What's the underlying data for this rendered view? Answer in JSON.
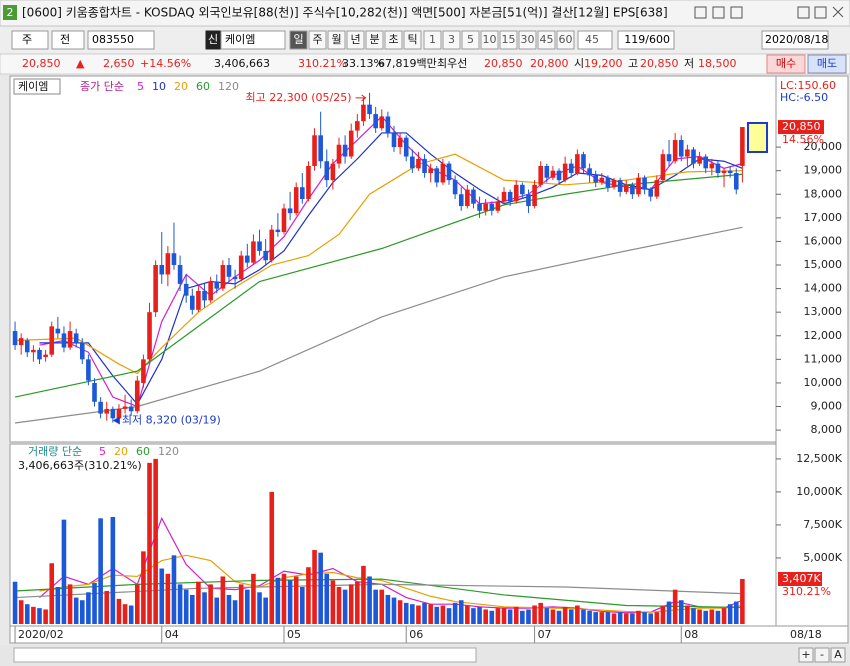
{
  "window": {
    "badge": "2",
    "title": "[0600] 키움종합차트 - KOSDAQ 외국인보유[88(천)] 주식수[10,282(천)] 액면[500] 자본금[51(억)] 결산[12월] EPS[638]"
  },
  "toolbar": {
    "market": "주",
    "mode": "전",
    "code": "083550",
    "flag": "신",
    "name": "케이엠",
    "periods": [
      "일",
      "주",
      "월",
      "년",
      "분",
      "초",
      "틱"
    ],
    "intervals": [
      "1",
      "3",
      "5",
      "10",
      "15",
      "30",
      "45",
      "60"
    ],
    "custom": "45",
    "count": "119/600",
    "date": "2020/08/18"
  },
  "quote": {
    "price": "20,850",
    "arrow": "▲",
    "change": "2,650",
    "rate": "+14.56%",
    "volume": "3,406,663",
    "volume_rate": "310.21%",
    "turnover": "33.13%",
    "amount": "67,819백만",
    "best_label": "최우선",
    "best_ask": "20,850",
    "best_bid": "20,800",
    "open_label": "시",
    "open": "19,200",
    "high_label": "고",
    "high": "20,850",
    "low_label": "저",
    "low": "18,500",
    "buy": "매수",
    "sell": "매도"
  },
  "chart_data": [
    {
      "type": "candlestick",
      "name": "케이엠",
      "legend_title": "종가 단순",
      "up_color": "#e8201c",
      "down_color": "#1c58d8",
      "xlim": [
        -0.5,
        124.5
      ],
      "ylim": [
        7580,
        22930
      ],
      "xticks": [
        {
          "value": 0,
          "label": "2020/02"
        },
        {
          "value": 24,
          "label": "04"
        },
        {
          "value": 44,
          "label": "05"
        },
        {
          "value": 64,
          "label": "06"
        },
        {
          "value": 85,
          "label": "07"
        },
        {
          "value": 109,
          "label": "08"
        }
      ],
      "last_date": "08/18",
      "yticks": [
        {
          "value": 8000,
          "label": "8,000"
        },
        {
          "value": 9000,
          "label": "9,000"
        },
        {
          "value": 10000,
          "label": "10,000"
        },
        {
          "value": 11000,
          "label": "11,000"
        },
        {
          "value": 12000,
          "label": "12,000"
        },
        {
          "value": 13000,
          "label": "13,000"
        },
        {
          "value": 14000,
          "label": "14,000"
        },
        {
          "value": 15000,
          "label": "15,000"
        },
        {
          "value": 16000,
          "label": "16,000"
        },
        {
          "value": 17000,
          "label": "17,000"
        },
        {
          "value": 18000,
          "label": "18,000"
        },
        {
          "value": 19000,
          "label": "19,000"
        },
        {
          "value": 20000,
          "label": "20,000"
        }
      ],
      "lc": "LC:150.60",
      "hc": "HC:-6.50",
      "last_label": {
        "value": 20850,
        "label": "20,850"
      },
      "change_label": "14.56%",
      "annotations": [
        {
          "text": "최고 22,300 (05/25)",
          "index": 58,
          "value": 22300,
          "color": "#e8201c"
        },
        {
          "text": "최저 8,320 (03/19)",
          "index": 16,
          "value": 8320,
          "color": "#1c3cc8"
        }
      ],
      "open": [
        12200,
        11600,
        11800,
        11300,
        11400,
        11100,
        11200,
        12300,
        12100,
        11500,
        12100,
        11700,
        11000,
        10000,
        9200,
        8700,
        8900,
        8500,
        8900,
        9000,
        8800,
        10000,
        11000,
        13000,
        15000,
        14600,
        15500,
        15000,
        14200,
        13700,
        13100,
        13900,
        13500,
        14300,
        14000,
        15000,
        14500,
        14400,
        15400,
        15100,
        16000,
        15600,
        15200,
        16500,
        16400,
        17400,
        17200,
        18300,
        17800,
        19200,
        20500,
        19400,
        18600,
        19300,
        20100,
        19600,
        20700,
        21100,
        21800,
        21400,
        20800,
        21300,
        20600,
        20000,
        20400,
        19600,
        19100,
        19500,
        18900,
        19100,
        18500,
        19300,
        18600,
        18000,
        17500,
        18200,
        17600,
        17300,
        17600,
        17300,
        17700,
        18100,
        17700,
        18400,
        18000,
        17500,
        18400,
        19200,
        18700,
        19000,
        18600,
        19300,
        18900,
        19700,
        19100,
        18800,
        18500,
        18700,
        18300,
        18600,
        18100,
        18400,
        18000,
        18700,
        18200,
        17900,
        18600,
        19700,
        19400,
        20300,
        19600,
        19900,
        19300,
        19600,
        19100,
        19300,
        18900,
        19000,
        18900,
        19200
      ],
      "high": [
        12600,
        12100,
        11900,
        11600,
        11500,
        11400,
        12600,
        12800,
        12400,
        12600,
        12300,
        11900,
        11200,
        10200,
        9400,
        9200,
        9000,
        9100,
        9500,
        9300,
        10300,
        11200,
        13400,
        15200,
        16400,
        15800,
        16800,
        15400,
        14600,
        14000,
        14100,
        14200,
        14500,
        14600,
        15200,
        15300,
        14800,
        15600,
        15900,
        16300,
        16500,
        16100,
        16700,
        17200,
        17600,
        18100,
        18500,
        18900,
        19400,
        20800,
        21500,
        19900,
        19500,
        20400,
        20500,
        21000,
        21400,
        22100,
        22300,
        21700,
        21600,
        21500,
        20900,
        20600,
        20500,
        19900,
        19800,
        19700,
        19300,
        19200,
        19500,
        19400,
        18800,
        18300,
        18400,
        18300,
        17900,
        17800,
        17700,
        17900,
        18300,
        18200,
        18600,
        18500,
        18200,
        18600,
        19400,
        19300,
        19200,
        19100,
        19600,
        19500,
        19900,
        19800,
        19300,
        19000,
        18900,
        18800,
        18700,
        18700,
        18600,
        18500,
        18900,
        18800,
        18300,
        18800,
        19900,
        20300,
        20600,
        20500,
        20100,
        20000,
        19800,
        19700,
        19500,
        19400,
        19100,
        19200,
        19100,
        20850
      ],
      "low": [
        11400,
        11200,
        11100,
        10900,
        10800,
        10900,
        11100,
        11900,
        11300,
        11400,
        11500,
        10800,
        9900,
        9000,
        8500,
        8400,
        8320,
        8400,
        8700,
        8600,
        8700,
        9800,
        10900,
        12800,
        14200,
        14100,
        14800,
        13900,
        13400,
        12900,
        13000,
        13200,
        13400,
        13800,
        13900,
        14300,
        14000,
        14300,
        14900,
        15000,
        15400,
        15000,
        15100,
        16200,
        16300,
        16900,
        17100,
        17600,
        17700,
        19000,
        19100,
        18300,
        18200,
        19100,
        19300,
        19500,
        20400,
        20900,
        21200,
        20600,
        20700,
        20400,
        19800,
        19700,
        19400,
        18900,
        19000,
        18700,
        18500,
        18300,
        18400,
        18400,
        17800,
        17300,
        17400,
        17400,
        17000,
        17100,
        17100,
        17200,
        17600,
        17500,
        17600,
        17800,
        17200,
        17400,
        18300,
        18500,
        18600,
        18400,
        18500,
        18700,
        18800,
        18900,
        18500,
        18300,
        18400,
        18100,
        18200,
        17900,
        18000,
        17800,
        17900,
        18000,
        17700,
        17800,
        18500,
        19200,
        19300,
        19400,
        19200,
        19100,
        19200,
        18900,
        18800,
        18700,
        18300,
        18700,
        18000,
        18500
      ],
      "close": [
        11600,
        11900,
        11300,
        11400,
        11000,
        11200,
        12400,
        12100,
        11500,
        12200,
        11700,
        11000,
        10100,
        9200,
        8700,
        8900,
        8500,
        8900,
        9000,
        8800,
        10100,
        11000,
        13000,
        15000,
        14600,
        15500,
        15000,
        14200,
        13700,
        13100,
        13900,
        13500,
        14300,
        14000,
        15000,
        14500,
        14400,
        15400,
        15100,
        16000,
        15600,
        15200,
        16500,
        16400,
        17400,
        17200,
        18300,
        17800,
        19200,
        20500,
        19400,
        18600,
        19300,
        20100,
        19600,
        20700,
        21100,
        21800,
        21400,
        20800,
        21300,
        20600,
        20000,
        20400,
        19600,
        19100,
        19500,
        18900,
        19100,
        18500,
        19300,
        18600,
        18000,
        17500,
        18200,
        17600,
        17300,
        17600,
        17300,
        17700,
        18100,
        17700,
        18400,
        18000,
        17500,
        18400,
        19200,
        18700,
        19000,
        18600,
        19300,
        18900,
        19700,
        19100,
        18800,
        18500,
        18700,
        18300,
        18600,
        18100,
        18400,
        18000,
        18700,
        18200,
        17900,
        18600,
        19700,
        19400,
        20300,
        19600,
        19900,
        19300,
        19600,
        19100,
        19300,
        18900,
        19000,
        18900,
        18200,
        20850
      ],
      "series": [
        {
          "name": "5",
          "color": "#d21ed2",
          "x": [
            4,
            8,
            12,
            16,
            20,
            24,
            28,
            32,
            36,
            40,
            44,
            48,
            52,
            56,
            60,
            64,
            68,
            72,
            76,
            80,
            84,
            88,
            92,
            96,
            100,
            104,
            108,
            112,
            116,
            119
          ],
          "values": [
            11600,
            11800,
            11300,
            9400,
            9000,
            12600,
            14600,
            13700,
            14500,
            15200,
            16200,
            17800,
            19300,
            20300,
            21300,
            20100,
            19100,
            18600,
            17600,
            17700,
            18000,
            18800,
            19200,
            18500,
            18300,
            18200,
            19500,
            19600,
            19100,
            19300
          ]
        },
        {
          "name": "10",
          "color": "#1e32c8",
          "x": [
            4,
            8,
            12,
            16,
            20,
            24,
            28,
            32,
            36,
            40,
            44,
            48,
            52,
            56,
            60,
            64,
            68,
            72,
            76,
            80,
            84,
            88,
            92,
            96,
            100,
            104,
            108,
            112,
            116,
            119
          ],
          "values": [
            11700,
            11700,
            11700,
            10300,
            9100,
            11000,
            14000,
            14300,
            14200,
            14800,
            15600,
            17100,
            18500,
            19500,
            20600,
            20600,
            19700,
            18900,
            18200,
            17600,
            17900,
            18300,
            18900,
            18800,
            18400,
            18200,
            18800,
            19500,
            19400,
            19100
          ]
        },
        {
          "name": "20",
          "color": "#e8a000",
          "x": [
            0,
            10,
            17,
            20,
            24,
            30,
            35,
            42,
            48,
            53,
            58,
            66,
            72,
            80,
            90,
            100,
            110,
            119
          ],
          "values": [
            11800,
            11900,
            10800,
            10400,
            11500,
            13000,
            13900,
            15000,
            15400,
            16300,
            18000,
            19270,
            19700,
            18600,
            18400,
            18600,
            18950,
            19000
          ]
        },
        {
          "name": "60",
          "color": "#2a9a2a",
          "x": [
            0,
            20,
            40,
            60,
            80,
            90,
            100,
            119
          ],
          "values": [
            9400,
            10500,
            14300,
            15700,
            17550,
            18000,
            18400,
            18850
          ]
        },
        {
          "name": "120",
          "color": "#8c8c8c",
          "x": [
            0,
            20,
            40,
            60,
            80,
            100,
            119
          ],
          "values": [
            8300,
            9000,
            10500,
            12800,
            14500,
            15600,
            16600
          ]
        }
      ]
    },
    {
      "type": "bar",
      "legend_title": "거래량 단순",
      "subtitle": "3,406,663주(310.21%)",
      "ylim": [
        0,
        13400
      ],
      "yticks": [
        {
          "value": 5000,
          "label": "5,000K"
        },
        {
          "value": 7500,
          "label": "7,500K"
        },
        {
          "value": 10000,
          "label": "10,000K"
        },
        {
          "value": 12500,
          "label": "12,500K"
        }
      ],
      "last_label": {
        "value": 3406.663,
        "label": "3,407K"
      },
      "rate_label": "310.21%",
      "values": [
        3200,
        1800,
        1500,
        1300,
        1200,
        1100,
        4600,
        2800,
        7900,
        3000,
        2000,
        1800,
        2400,
        3100,
        8000,
        2500,
        8100,
        1900,
        1500,
        1400,
        3000,
        5500,
        12200,
        12500,
        4200,
        3800,
        5200,
        3000,
        2600,
        2200,
        3200,
        2400,
        3000,
        2000,
        3600,
        2200,
        1800,
        3000,
        2600,
        3800,
        2400,
        2000,
        10000,
        3500,
        3800,
        3300,
        3600,
        2800,
        4300,
        5600,
        5400,
        3800,
        3300,
        2800,
        2600,
        3000,
        3200,
        4400,
        3600,
        2600,
        2600,
        2200,
        2000,
        1800,
        1600,
        1500,
        1400,
        1600,
        1500,
        1300,
        1400,
        1200,
        1600,
        1800,
        1400,
        1200,
        1300,
        1100,
        1000,
        1200,
        1200,
        1100,
        1300,
        1000,
        1100,
        1400,
        1600,
        1200,
        1100,
        1000,
        1300,
        1100,
        1400,
        1100,
        1000,
        900,
        900,
        900,
        800,
        900,
        800,
        800,
        1000,
        900,
        800,
        900,
        1400,
        1700,
        2600,
        1800,
        1400,
        1200,
        1100,
        1000,
        1100,
        1000,
        1200,
        1500,
        1700,
        3406.663
      ],
      "series": [
        {
          "name": "5",
          "color": "#d21ed2",
          "x": [
            4,
            8,
            12,
            16,
            20,
            24,
            28,
            32,
            36,
            40,
            44,
            48,
            52,
            56,
            60,
            64,
            68,
            72,
            76,
            80,
            84,
            88,
            92,
            96,
            100,
            104,
            108,
            112,
            116,
            119
          ],
          "values": [
            2000,
            3600,
            3000,
            4200,
            3000,
            8000,
            4500,
            2700,
            2600,
            2900,
            4000,
            3700,
            4200,
            3200,
            3000,
            2000,
            1500,
            1500,
            1300,
            1200,
            1200,
            1300,
            1200,
            950,
            850,
            900,
            1700,
            1300,
            1200,
            1800
          ]
        },
        {
          "name": "20",
          "color": "#e8a000",
          "x": [
            4,
            8,
            12,
            16,
            20,
            24,
            28,
            32,
            36,
            40,
            44,
            48,
            52,
            56,
            60,
            64,
            68,
            72,
            76,
            80,
            84,
            88,
            92,
            96,
            100,
            104,
            108,
            112,
            116,
            119
          ],
          "values": [
            2500,
            2800,
            3000,
            3700,
            3600,
            4800,
            5200,
            4800,
            3200,
            2800,
            3500,
            3800,
            3900,
            3500,
            3300,
            2700,
            2100,
            1700,
            1500,
            1300,
            1250,
            1200,
            1150,
            1050,
            950,
            900,
            1050,
            1200,
            1200,
            1400
          ]
        },
        {
          "name": "60",
          "color": "#2a9a2a",
          "x": [
            0,
            20,
            40,
            60,
            80,
            100,
            119
          ],
          "values": [
            2500,
            3000,
            3300,
            3400,
            2200,
            1400,
            1250
          ]
        },
        {
          "name": "120",
          "color": "#8c8c8c",
          "x": [
            0,
            30,
            60,
            90,
            119
          ],
          "values": [
            2000,
            2700,
            3000,
            2800,
            2300
          ]
        }
      ]
    }
  ],
  "footer": {
    "zoom_in": "+",
    "zoom_out": "-",
    "reset": "A"
  }
}
